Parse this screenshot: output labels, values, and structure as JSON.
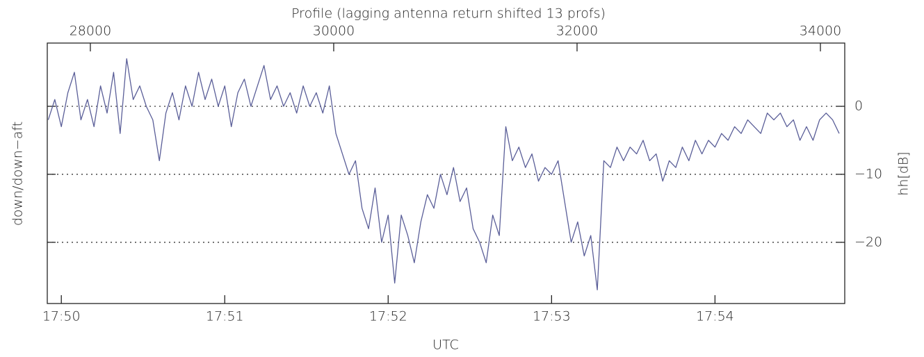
{
  "chart_data": {
    "type": "line",
    "title": "Profile (lagging antenna return shifted 13 profs)",
    "xlabel": "UTC",
    "ylabel": "down/down−aft",
    "y2label": "hh[dB]",
    "x": [
      49.92,
      49.96,
      50.0,
      50.04,
      50.08,
      50.12,
      50.16,
      50.2,
      50.24,
      50.28,
      50.32,
      50.36,
      50.4,
      50.44,
      50.48,
      50.52,
      50.56,
      50.6,
      50.64,
      50.68,
      50.72,
      50.76,
      50.8,
      50.84,
      50.88,
      50.92,
      50.96,
      51.0,
      51.04,
      51.08,
      51.12,
      51.16,
      51.2,
      51.24,
      51.28,
      51.32,
      51.36,
      51.4,
      51.44,
      51.48,
      51.52,
      51.56,
      51.6,
      51.64,
      51.68,
      51.72,
      51.76,
      51.8,
      51.84,
      51.88,
      51.92,
      51.96,
      52.0,
      52.04,
      52.08,
      52.12,
      52.16,
      52.2,
      52.24,
      52.28,
      52.32,
      52.36,
      52.4,
      52.44,
      52.48,
      52.52,
      52.56,
      52.6,
      52.64,
      52.68,
      52.72,
      52.76,
      52.8,
      52.84,
      52.88,
      52.92,
      52.96,
      53.0,
      53.04,
      53.08,
      53.12,
      53.16,
      53.2,
      53.24,
      53.28,
      53.32,
      53.36,
      53.4,
      53.44,
      53.48,
      53.52,
      53.56,
      53.6,
      53.64,
      53.68,
      53.72,
      53.76,
      53.8,
      53.84,
      53.88,
      53.92,
      53.96,
      54.0,
      54.04,
      54.08,
      54.12,
      54.16,
      54.2,
      54.24,
      54.28,
      54.32,
      54.36,
      54.4,
      54.44,
      54.48,
      54.52,
      54.56,
      54.6,
      54.64,
      54.68,
      54.72,
      54.76
    ],
    "series": [
      {
        "color": "#5a5e98",
        "values": [
          -2,
          1,
          -3,
          2,
          5,
          -2,
          1,
          -3,
          3,
          -1,
          5,
          -4,
          7,
          1,
          3,
          0,
          -2,
          -8,
          -1,
          2,
          -2,
          3,
          0,
          5,
          1,
          4,
          0,
          3,
          -3,
          2,
          4,
          0,
          3,
          6,
          1,
          3,
          0,
          2,
          -1,
          3,
          0,
          2,
          -1,
          3,
          -4,
          -7,
          -10,
          -8,
          -15,
          -18,
          -12,
          -20,
          -16,
          -26,
          -16,
          -19,
          -23,
          -17,
          -13,
          -15,
          -10,
          -13,
          -9,
          -14,
          -12,
          -18,
          -20,
          -23,
          -16,
          -19,
          -3,
          -8,
          -6,
          -9,
          -7,
          -11,
          -9,
          -10,
          -8,
          -14,
          -20,
          -17,
          -22,
          -19,
          -27,
          -8,
          -9,
          -6,
          -8,
          -6,
          -7,
          -5,
          -8,
          -7,
          -11,
          -8,
          -9,
          -6,
          -8,
          -5,
          -7,
          -5,
          -6,
          -4,
          -5,
          -3,
          -4,
          -2,
          -3,
          -4,
          -1,
          -2,
          -1,
          -3,
          -2,
          -5,
          -3,
          -5,
          -2,
          -1,
          -2,
          -4
        ]
      }
    ],
    "xlim": [
      49.914,
      54.794
    ],
    "xticks": [
      {
        "value": 50,
        "label": "17:50"
      },
      {
        "value": 51,
        "label": "17:51"
      },
      {
        "value": 52,
        "label": "17:52"
      },
      {
        "value": 53,
        "label": "17:53"
      },
      {
        "value": 54,
        "label": "17:54"
      }
    ],
    "x2lim": [
      27646,
      34200
    ],
    "x2ticks": [
      28000,
      30000,
      32000,
      34000
    ],
    "ylim": [
      -29,
      9.3
    ],
    "yticks": [
      0,
      {
        "value": -10,
        "label": "−10"
      },
      {
        "value": -20,
        "label": "−20"
      }
    ],
    "grid": true
  }
}
